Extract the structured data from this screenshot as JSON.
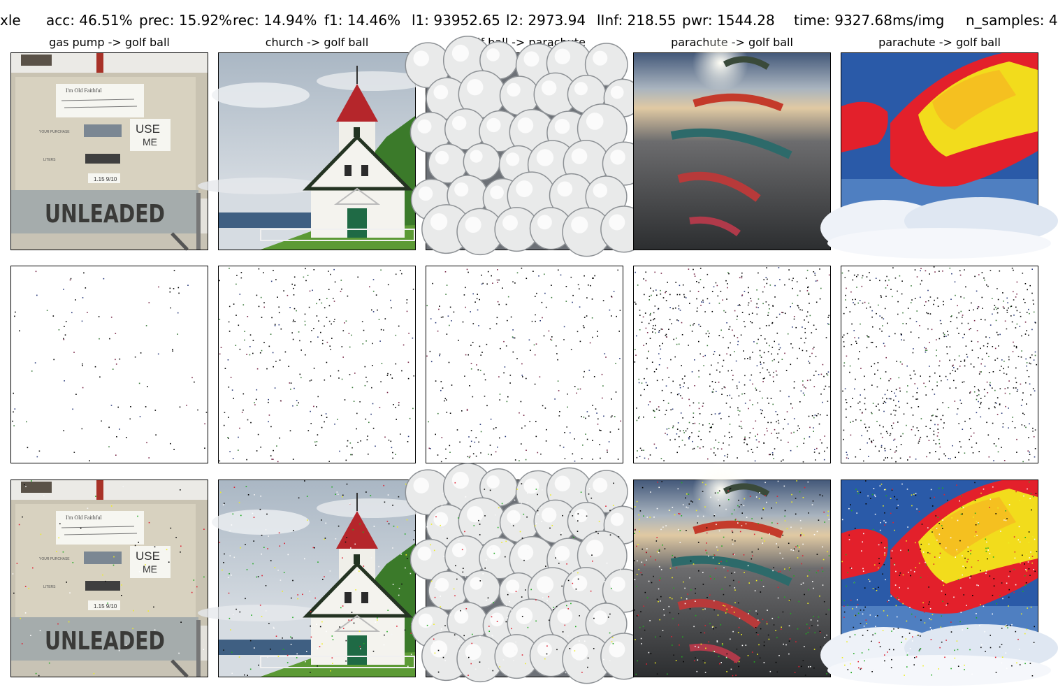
{
  "header": {
    "prefix": "xle",
    "acc": "acc: 46.51%",
    "prec": "prec: 15.92%",
    "rec": "rec: 14.94%",
    "f1": "f1: 14.46%",
    "l1": "l1: 93952.65",
    "l2": "l2: 2973.94",
    "linf": "lInf: 218.55",
    "pwr": "pwr: 1544.28",
    "time": "time: 9327.68ms/img",
    "n_samples": "n_samples: 4"
  },
  "columns": [
    {
      "title": "gas pump -> golf ball",
      "noise_density": 0.15
    },
    {
      "title": "church -> golf ball",
      "noise_density": 0.45
    },
    {
      "title": "golf ball -> parachute",
      "noise_density": 0.45
    },
    {
      "title": "parachute -> golf ball",
      "noise_density": 1.0
    },
    {
      "title": "parachute -> golf ball",
      "noise_density": 1.0
    }
  ],
  "pump_texts": {
    "note": "I'm Old Faithful",
    "use": "USE",
    "me": "ME",
    "purchase": "YOUR PURCHASE",
    "liters": "LITERS",
    "price": "1.15 9/10",
    "unleaded": "UNLEADED"
  },
  "colors": {
    "sky": "#c9d3dc",
    "grass": "#4e8a2f",
    "church_roof": "#b3262a",
    "parachute_red": "#e3202b",
    "parachute_yellow": "#f2dc1c",
    "sky_blue": "#2a5aa8"
  }
}
